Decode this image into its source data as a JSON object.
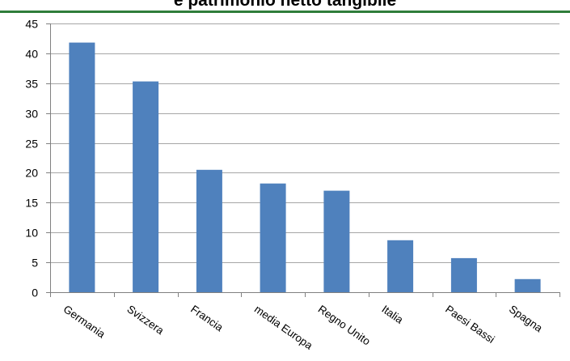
{
  "chart_data": {
    "type": "bar",
    "title": "e patrimonio netto tangibile",
    "categories": [
      "Germania",
      "Svizzera",
      "Francia",
      "media Europa",
      "Regno Unito",
      "Italia",
      "Paesi Bassi",
      "Spagna"
    ],
    "values": [
      41.8,
      35.3,
      20.5,
      18.2,
      17.0,
      8.7,
      5.7,
      2.2
    ],
    "ylim": [
      0,
      45
    ],
    "yticks": [
      0,
      5,
      10,
      15,
      20,
      25,
      30,
      35,
      40,
      45
    ],
    "xlabel": "",
    "ylabel": "",
    "grid": true,
    "bar_color": "#4f81bd",
    "grid_color": "#a6a6a6",
    "title_rule_color": "#2f7d3a"
  }
}
